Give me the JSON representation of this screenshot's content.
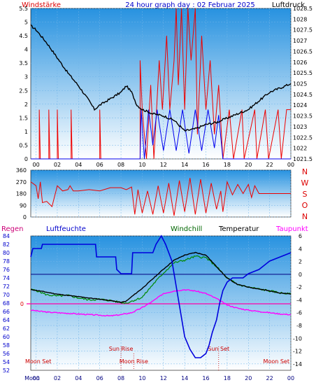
{
  "header": {
    "left_label": "Windstärke",
    "title": "24 hour graph day : 02 Februar 2025",
    "right_label": "Luftdruck"
  },
  "legend": {
    "rain": "Regen",
    "humidity": "Luftfeuchte",
    "windchill": "Windchill",
    "temperature": "Temperatur",
    "dewpoint": "Taupunkt"
  },
  "colors": {
    "wind": "#ee0000",
    "gust": "#0000ee",
    "pressure": "#000000",
    "humidity": "#0000dd",
    "windchill": "#008800",
    "temperature": "#000000",
    "dewpoint": "#ff00ff",
    "grid": "#70b4e8",
    "bg_top": "#2792e0",
    "bg_bottom": "#ffffff"
  },
  "chart_data": [
    {
      "type": "line",
      "name": "wind-pressure",
      "x_ticks": [
        "00",
        "02",
        "04",
        "06",
        "08",
        "10",
        "12",
        "14",
        "16",
        "18",
        "20",
        "22",
        "00"
      ],
      "y_left_ticks": [
        "0",
        "0.5",
        "1",
        "1.5",
        "2",
        "2.5",
        "3",
        "3.5",
        "4",
        "4.5",
        "5",
        "5.5"
      ],
      "y_right_ticks": [
        "1021.5",
        "1022",
        "1022.5",
        "1023",
        "1023.5",
        "1024",
        "1024.5",
        "1025",
        "1025.5",
        "1026",
        "1026.5",
        "1027",
        "1027.5",
        "1028",
        "1028.5"
      ],
      "ylim_left": [
        0,
        5.5
      ],
      "ylim_right": [
        1021.5,
        1028.5
      ],
      "xlim": [
        -0.5,
        24
      ],
      "pressure": [
        [
          -0.5,
          1027.7
        ],
        [
          0,
          1027.5
        ],
        [
          1,
          1026.9
        ],
        [
          2,
          1026.2
        ],
        [
          3,
          1025.5
        ],
        [
          4,
          1024.9
        ],
        [
          5,
          1024.2
        ],
        [
          5.5,
          1023.8
        ],
        [
          6,
          1024.0
        ],
        [
          7,
          1024.3
        ],
        [
          8,
          1024.6
        ],
        [
          8.5,
          1024.9
        ],
        [
          9,
          1024.6
        ],
        [
          9.5,
          1024.0
        ],
        [
          10,
          1023.8
        ],
        [
          11,
          1023.6
        ],
        [
          12,
          1023.5
        ],
        [
          13,
          1023.3
        ],
        [
          14,
          1022.8
        ],
        [
          15,
          1022.9
        ],
        [
          16,
          1023.1
        ],
        [
          17,
          1023.2
        ],
        [
          18,
          1023.4
        ],
        [
          19,
          1023.6
        ],
        [
          20,
          1023.8
        ],
        [
          21,
          1024.2
        ],
        [
          22,
          1024.6
        ],
        [
          23,
          1024.8
        ],
        [
          24,
          1025.0
        ]
      ],
      "wind": [
        [
          -0.5,
          0
        ],
        [
          0.3,
          0
        ],
        [
          0.3,
          1.8
        ],
        [
          0.4,
          0
        ],
        [
          1.2,
          0
        ],
        [
          1.2,
          1.8
        ],
        [
          1.3,
          0
        ],
        [
          2,
          0
        ],
        [
          2,
          1.8
        ],
        [
          2.1,
          0
        ],
        [
          3.3,
          0
        ],
        [
          3.3,
          1.8
        ],
        [
          3.4,
          0
        ],
        [
          6,
          0
        ],
        [
          6,
          1.8
        ],
        [
          6.1,
          0
        ],
        [
          9.8,
          0
        ],
        [
          9.8,
          3.6
        ],
        [
          10,
          1.8
        ],
        [
          10.4,
          0
        ],
        [
          10.8,
          2.7
        ],
        [
          11.1,
          0
        ],
        [
          11.6,
          3.6
        ],
        [
          11.9,
          1.8
        ],
        [
          12.3,
          4.5
        ],
        [
          12.6,
          1.8
        ],
        [
          13,
          3.6
        ],
        [
          13.2,
          5.5
        ],
        [
          13.4,
          2.7
        ],
        [
          13.7,
          5.5
        ],
        [
          14,
          1.8
        ],
        [
          14.3,
          5.5
        ],
        [
          14.6,
          3.6
        ],
        [
          15,
          5.5
        ],
        [
          15.2,
          0.9
        ],
        [
          15.6,
          4.5
        ],
        [
          16,
          1.8
        ],
        [
          16.4,
          3.6
        ],
        [
          16.8,
          0.9
        ],
        [
          17.2,
          2.7
        ],
        [
          17.6,
          0
        ],
        [
          18.2,
          1.8
        ],
        [
          18.6,
          0
        ],
        [
          19.4,
          1.8
        ],
        [
          19.6,
          0
        ],
        [
          20.6,
          1.8
        ],
        [
          20.8,
          0
        ],
        [
          21.6,
          1.8
        ],
        [
          21.9,
          0
        ],
        [
          22.8,
          1.8
        ],
        [
          23.1,
          0
        ],
        [
          23.6,
          1.8
        ],
        [
          24,
          1.8
        ]
      ],
      "gust": [
        [
          -0.5,
          0
        ],
        [
          9.8,
          0
        ],
        [
          9.9,
          1.8
        ],
        [
          10.2,
          0
        ],
        [
          10.6,
          1.8
        ],
        [
          11,
          0.5
        ],
        [
          11.4,
          1.8
        ],
        [
          12,
          0.3
        ],
        [
          12.6,
          1.8
        ],
        [
          13.2,
          0.3
        ],
        [
          13.8,
          1.8
        ],
        [
          14.4,
          0.2
        ],
        [
          15,
          1.8
        ],
        [
          15.6,
          0.3
        ],
        [
          16.2,
          1.8
        ],
        [
          16.8,
          0.4
        ],
        [
          17.2,
          1.6
        ],
        [
          17.6,
          0
        ],
        [
          24,
          0
        ]
      ]
    },
    {
      "type": "line",
      "name": "wind-direction",
      "x_ticks": [
        "00",
        "02",
        "04",
        "06",
        "08",
        "10",
        "12",
        "14",
        "16",
        "18",
        "20",
        "22",
        "00"
      ],
      "y_ticks": [
        "0",
        "90",
        "180",
        "270",
        "360"
      ],
      "compass_labels": [
        "N",
        "W",
        "S",
        "O",
        "N"
      ],
      "ylim": [
        0,
        360
      ],
      "xlim": [
        -0.5,
        24
      ],
      "direction": [
        [
          -0.5,
          270
        ],
        [
          0,
          240
        ],
        [
          0.2,
          140
        ],
        [
          0.4,
          270
        ],
        [
          0.6,
          110
        ],
        [
          1,
          120
        ],
        [
          1.5,
          80
        ],
        [
          2,
          240
        ],
        [
          2.5,
          200
        ],
        [
          3,
          210
        ],
        [
          3.2,
          240
        ],
        [
          3.5,
          200
        ],
        [
          4,
          200
        ],
        [
          5,
          210
        ],
        [
          6,
          200
        ],
        [
          7,
          225
        ],
        [
          8,
          225
        ],
        [
          8.5,
          210
        ],
        [
          9,
          230
        ],
        [
          9.3,
          20
        ],
        [
          9.6,
          210
        ],
        [
          10,
          30
        ],
        [
          10.5,
          200
        ],
        [
          11,
          20
        ],
        [
          11.5,
          240
        ],
        [
          12,
          30
        ],
        [
          12.5,
          260
        ],
        [
          13,
          10
        ],
        [
          13.5,
          280
        ],
        [
          14,
          40
        ],
        [
          14.5,
          300
        ],
        [
          15,
          20
        ],
        [
          15.5,
          290
        ],
        [
          16,
          30
        ],
        [
          16.5,
          260
        ],
        [
          17,
          60
        ],
        [
          17.4,
          200
        ],
        [
          17.6,
          40
        ],
        [
          18,
          270
        ],
        [
          18.5,
          170
        ],
        [
          19,
          250
        ],
        [
          19.5,
          180
        ],
        [
          20,
          250
        ],
        [
          20.3,
          150
        ],
        [
          20.6,
          240
        ],
        [
          21,
          180
        ],
        [
          24,
          180
        ]
      ]
    },
    {
      "type": "line",
      "name": "temperature-humidity",
      "x_ticks": [
        "Moon",
        "00",
        "02",
        "04",
        "06",
        "08",
        "10",
        "12",
        "14",
        "16",
        "18",
        "20",
        "22",
        "00"
      ],
      "y_left_ticks": [
        "84",
        "82",
        "80",
        "78",
        "76",
        "74",
        "72",
        "70",
        "68",
        "66",
        "64",
        "62",
        "60",
        "58",
        "56",
        "54",
        "52"
      ],
      "y_right_ticks": [
        "6",
        "4",
        "2",
        "0",
        "-2",
        "-4",
        "-6",
        "-8",
        "-10",
        "-12",
        "-14"
      ],
      "rain_axis_value": "0",
      "ylim_left": [
        52,
        84
      ],
      "ylim_right": [
        -15,
        6
      ],
      "xlim": [
        -0.5,
        24
      ],
      "markers": [
        {
          "label": "Moon Set",
          "x": -0.2
        },
        {
          "label": "Sun Rise",
          "x": 8
        },
        {
          "label": "Moon Rise",
          "x": 9.2
        },
        {
          "label": "Sun Set",
          "x": 17.2
        },
        {
          "label": "Moon Set",
          "x": 23.6
        }
      ],
      "humidity": [
        [
          -0.5,
          79
        ],
        [
          -0.3,
          81
        ],
        [
          0.5,
          81
        ],
        [
          0.6,
          82
        ],
        [
          5.6,
          82
        ],
        [
          5.7,
          79
        ],
        [
          6.5,
          79
        ],
        [
          7.5,
          79
        ],
        [
          7.6,
          76
        ],
        [
          8,
          75
        ],
        [
          9,
          75
        ],
        [
          9.1,
          80
        ],
        [
          11,
          80
        ],
        [
          11.3,
          82
        ],
        [
          11.8,
          84
        ],
        [
          12.2,
          82
        ],
        [
          12.8,
          78
        ],
        [
          13.2,
          72
        ],
        [
          13.6,
          66
        ],
        [
          14,
          60
        ],
        [
          14.5,
          57
        ],
        [
          15,
          55
        ],
        [
          15.5,
          55
        ],
        [
          16,
          56
        ],
        [
          16.3,
          58
        ],
        [
          16.6,
          61
        ],
        [
          17,
          64
        ],
        [
          17.3,
          68
        ],
        [
          17.6,
          71
        ],
        [
          18,
          73
        ],
        [
          18.5,
          74
        ],
        [
          19.5,
          74
        ],
        [
          20,
          75
        ],
        [
          21,
          76
        ],
        [
          22,
          78
        ],
        [
          23,
          79
        ],
        [
          24,
          80
        ]
      ],
      "temperature": [
        [
          -0.5,
          -2.4
        ],
        [
          0,
          -2.5
        ],
        [
          1,
          -2.8
        ],
        [
          2,
          -3.1
        ],
        [
          3,
          -3.3
        ],
        [
          4,
          -3.5
        ],
        [
          5,
          -3.7
        ],
        [
          6,
          -3.9
        ],
        [
          7,
          -4.1
        ],
        [
          8,
          -4.4
        ],
        [
          8.5,
          -4.2
        ],
        [
          9,
          -3.5
        ],
        [
          10,
          -2.2
        ],
        [
          11,
          -0.7
        ],
        [
          12,
          0.8
        ],
        [
          13,
          2.2
        ],
        [
          14,
          3.0
        ],
        [
          15,
          3.4
        ],
        [
          16,
          3.0
        ],
        [
          17,
          1.2
        ],
        [
          18,
          -0.6
        ],
        [
          19,
          -1.6
        ],
        [
          20,
          -2.0
        ],
        [
          21,
          -2.3
        ],
        [
          22,
          -2.6
        ],
        [
          23,
          -2.9
        ],
        [
          24,
          -3.1
        ]
      ],
      "windchill": [
        [
          -0.5,
          -2.4
        ],
        [
          0,
          -2.5
        ],
        [
          1,
          -3.2
        ],
        [
          2,
          -3.4
        ],
        [
          3,
          -3.3
        ],
        [
          4,
          -3.7
        ],
        [
          5,
          -4.0
        ],
        [
          6,
          -3.9
        ],
        [
          7,
          -4.1
        ],
        [
          8,
          -4.4
        ],
        [
          8.5,
          -4.5
        ],
        [
          9,
          -4.2
        ],
        [
          10,
          -3.6
        ],
        [
          11,
          -1.6
        ],
        [
          12,
          0.2
        ],
        [
          13,
          1.8
        ],
        [
          14,
          2.2
        ],
        [
          15,
          2.8
        ],
        [
          16,
          2.6
        ],
        [
          17,
          1.2
        ],
        [
          18,
          -0.6
        ],
        [
          19,
          -1.6
        ],
        [
          20,
          -2.0
        ],
        [
          21,
          -2.3
        ],
        [
          22,
          -2.6
        ],
        [
          23,
          -2.9
        ],
        [
          24,
          -3.1
        ]
      ],
      "dewpoint": [
        [
          -0.5,
          -5.6
        ],
        [
          0,
          -5.7
        ],
        [
          1,
          -5.9
        ],
        [
          2,
          -6.0
        ],
        [
          3,
          -6.1
        ],
        [
          4,
          -6.2
        ],
        [
          5,
          -6.3
        ],
        [
          6,
          -6.4
        ],
        [
          7,
          -6.5
        ],
        [
          8,
          -6.3
        ],
        [
          9,
          -6.0
        ],
        [
          10,
          -5.2
        ],
        [
          11,
          -4.2
        ],
        [
          12,
          -3.0
        ],
        [
          13,
          -2.6
        ],
        [
          14,
          -2.4
        ],
        [
          15,
          -2.6
        ],
        [
          16,
          -3.0
        ],
        [
          17,
          -3.8
        ],
        [
          18,
          -4.8
        ],
        [
          19,
          -5.3
        ],
        [
          20,
          -5.6
        ],
        [
          21,
          -5.8
        ],
        [
          22,
          -6.0
        ],
        [
          23,
          -6.2
        ],
        [
          24,
          -6.3
        ]
      ]
    }
  ]
}
